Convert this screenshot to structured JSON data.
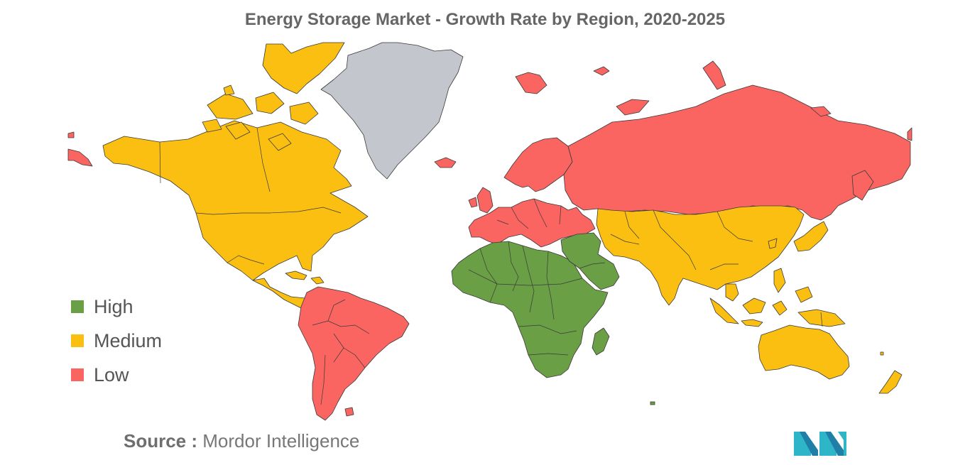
{
  "title": "Energy Storage Market - Growth Rate by Region, 2020-2025",
  "legend": [
    {
      "label": "High",
      "color": "#6a9f45"
    },
    {
      "label": "Medium",
      "color": "#fbbf12"
    },
    {
      "label": "Low",
      "color": "#fa6561"
    }
  ],
  "no_data_color": "#c3c6cc",
  "regions": [
    {
      "name": "North America",
      "category": "Medium"
    },
    {
      "name": "South America",
      "category": "Low"
    },
    {
      "name": "Europe",
      "category": "Low"
    },
    {
      "name": "Russia",
      "category": "Low"
    },
    {
      "name": "Middle East and Africa",
      "category": "High"
    },
    {
      "name": "Asia-Pacific",
      "category": "Medium"
    },
    {
      "name": "Greenland",
      "category": "No data"
    }
  ],
  "source": {
    "label": "Source :",
    "text": "Mordor Intelligence"
  },
  "logo": {
    "icon": "mordor-intelligence-logo"
  }
}
